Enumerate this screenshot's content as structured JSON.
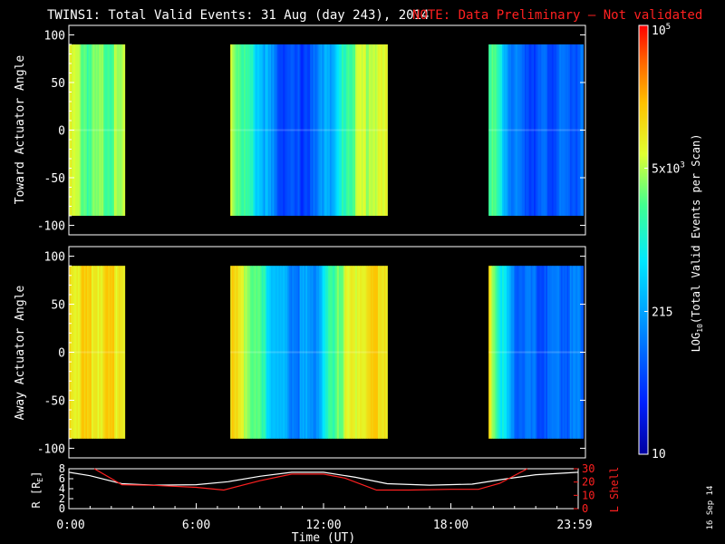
{
  "title": {
    "main": "TWINS1: Total Valid Events: 31 Aug (day 243), 2014",
    "note": "NOTE: Data Preliminary — Not validated",
    "note_color": "#ff2020"
  },
  "footer": {
    "date_stamp": "16 Sep 14"
  },
  "colors": {
    "axis": "#ffffff",
    "background": "#000000",
    "r_line": "#ffffff",
    "l_line": "#ff2020"
  },
  "chart_data": [
    {
      "type": "heatmap",
      "panel": "toward",
      "ylabel": "Toward Actuator Angle",
      "ylim": [
        -110,
        110
      ],
      "yticks": [
        100,
        50,
        0,
        -50,
        -100
      ],
      "data_y_range": [
        -90,
        90
      ],
      "x_range_hours": [
        0,
        24
      ],
      "scan_blocks_hours": [
        [
          0,
          2.6
        ],
        [
          7.5,
          14.8
        ],
        [
          19.5,
          23.9
        ]
      ],
      "value_profile": [
        {
          "t": 0.0,
          "v": 0.72
        },
        {
          "t": 0.5,
          "v": 0.66
        },
        {
          "t": 1.0,
          "v": 0.6
        },
        {
          "t": 1.6,
          "v": 0.63
        },
        {
          "t": 2.6,
          "v": 0.65
        },
        {
          "t": 7.5,
          "v": 0.72
        },
        {
          "t": 8.3,
          "v": 0.55
        },
        {
          "t": 9.0,
          "v": 0.4
        },
        {
          "t": 9.7,
          "v": 0.24
        },
        {
          "t": 10.5,
          "v": 0.18
        },
        {
          "t": 11.5,
          "v": 0.24
        },
        {
          "t": 12.0,
          "v": 0.42
        },
        {
          "t": 12.3,
          "v": 0.34
        },
        {
          "t": 12.8,
          "v": 0.58
        },
        {
          "t": 13.5,
          "v": 0.68
        },
        {
          "t": 14.2,
          "v": 0.72
        },
        {
          "t": 14.8,
          "v": 0.7
        },
        {
          "t": 19.5,
          "v": 0.66
        },
        {
          "t": 20.0,
          "v": 0.5
        },
        {
          "t": 20.6,
          "v": 0.28
        },
        {
          "t": 21.5,
          "v": 0.22
        },
        {
          "t": 22.5,
          "v": 0.23
        },
        {
          "t": 23.9,
          "v": 0.25
        }
      ]
    },
    {
      "type": "heatmap",
      "panel": "away",
      "ylabel": "Away Actuator Angle",
      "ylim": [
        -110,
        110
      ],
      "yticks": [
        100,
        50,
        0,
        -50,
        -100
      ],
      "data_y_range": [
        -90,
        90
      ],
      "x_range_hours": [
        0,
        24
      ],
      "scan_blocks_hours": [
        [
          0,
          2.6
        ],
        [
          7.5,
          14.8
        ],
        [
          19.5,
          23.9
        ]
      ],
      "value_profile": [
        {
          "t": 0.0,
          "v": 0.8
        },
        {
          "t": 1.0,
          "v": 0.77
        },
        {
          "t": 2.0,
          "v": 0.78
        },
        {
          "t": 2.6,
          "v": 0.79
        },
        {
          "t": 7.5,
          "v": 0.8
        },
        {
          "t": 8.3,
          "v": 0.7
        },
        {
          "t": 9.0,
          "v": 0.55
        },
        {
          "t": 9.7,
          "v": 0.38
        },
        {
          "t": 10.5,
          "v": 0.3
        },
        {
          "t": 11.5,
          "v": 0.35
        },
        {
          "t": 12.0,
          "v": 0.52
        },
        {
          "t": 12.5,
          "v": 0.66
        },
        {
          "t": 13.5,
          "v": 0.76
        },
        {
          "t": 14.8,
          "v": 0.8
        },
        {
          "t": 19.5,
          "v": 0.76
        },
        {
          "t": 20.0,
          "v": 0.55
        },
        {
          "t": 20.6,
          "v": 0.3
        },
        {
          "t": 21.5,
          "v": 0.24
        },
        {
          "t": 22.5,
          "v": 0.26
        },
        {
          "t": 23.9,
          "v": 0.28
        }
      ]
    },
    {
      "type": "line",
      "panel": "orbit",
      "ylabel_left": "R [R",
      "ylabel_left_sub": "E",
      "ylabel_left_end": "]",
      "ylabel_right": "L Shell",
      "ylim_left": [
        0,
        8
      ],
      "yticks_left": [
        8,
        6,
        4,
        2,
        0
      ],
      "ylim_right": [
        0,
        30
      ],
      "yticks_right": [
        30,
        20,
        10,
        0
      ],
      "xlabel": "Time (UT)",
      "xtick_labels": [
        "0:00",
        "6:00",
        "12:00",
        "18:00",
        "23:59"
      ],
      "xtick_hours": [
        0,
        6,
        12,
        18,
        24
      ],
      "series": [
        {
          "axis": "left",
          "color": "#ffffff",
          "points": [
            [
              0,
              7.3
            ],
            [
              1,
              6.6
            ],
            [
              2.5,
              5.0
            ],
            [
              4,
              4.7
            ],
            [
              6,
              4.8
            ],
            [
              7.5,
              5.4
            ],
            [
              9,
              6.5
            ],
            [
              10.5,
              7.3
            ],
            [
              12,
              7.3
            ],
            [
              13.5,
              6.3
            ],
            [
              15,
              5.0
            ],
            [
              17,
              4.7
            ],
            [
              19,
              4.9
            ],
            [
              20.5,
              5.9
            ],
            [
              22,
              6.8
            ],
            [
              24,
              7.3
            ]
          ]
        },
        {
          "axis": "right",
          "color": "#ff2020",
          "points": [
            [
              1.2,
              30
            ],
            [
              2.5,
              18
            ],
            [
              4,
              17.5
            ],
            [
              6,
              16
            ],
            [
              7.3,
              14
            ],
            [
              9,
              21
            ],
            [
              10.5,
              26
            ],
            [
              12,
              26
            ],
            [
              13,
              23
            ],
            [
              14.5,
              14
            ],
            [
              16,
              14
            ],
            [
              18,
              14.5
            ],
            [
              19.3,
              14.5
            ],
            [
              20.3,
              19
            ],
            [
              21.6,
              30
            ]
          ]
        }
      ]
    },
    {
      "type": "colorbar",
      "label_prefix": "LOG",
      "label_sub": "10",
      "label_suffix": "(Total Valid Events per Scan)",
      "ticks": [
        {
          "label": "10",
          "frac": 0.0
        },
        {
          "label": "215",
          "frac": 0.333
        },
        {
          "label": "5x10",
          "sup": "3",
          "frac": 0.667
        },
        {
          "label": "10",
          "sup": "5",
          "frac": 1.0
        }
      ]
    }
  ]
}
